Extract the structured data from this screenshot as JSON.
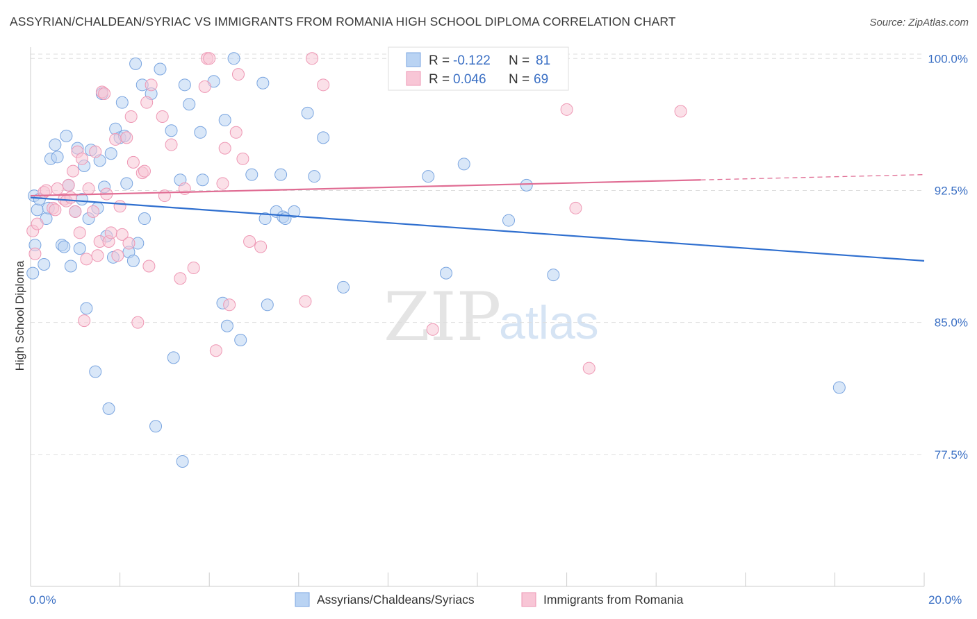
{
  "header": {
    "title": "ASSYRIAN/CHALDEAN/SYRIAC VS IMMIGRANTS FROM ROMANIA HIGH SCHOOL DIPLOMA CORRELATION CHART",
    "source": "Source: ZipAtlas.com"
  },
  "watermark": {
    "zip": "ZIP",
    "atlas": "atlas"
  },
  "stats_legend": {
    "rows": [
      {
        "r_label": "R =",
        "r_value": "-0.122",
        "n_label": "N =",
        "n_value": "81"
      },
      {
        "r_label": "R =",
        "r_value": "0.046",
        "n_label": "N =",
        "n_value": "69"
      }
    ]
  },
  "colors": {
    "blue_fill": "#b9d3f3",
    "blue_stroke": "#7aa5e0",
    "blue_line": "#2f6fcf",
    "pink_fill": "#f8c6d6",
    "pink_stroke": "#ee97b4",
    "pink_line": "#e06c93",
    "tick_label": "#3a6fc4",
    "grid": "#dddddd"
  },
  "chart_data": {
    "type": "scatter",
    "title": "ASSYRIAN/CHALDEAN/SYRIAC VS IMMIGRANTS FROM ROMANIA HIGH SCHOOL DIPLOMA CORRELATION CHART",
    "xlabel": "",
    "ylabel": "High School Diploma",
    "xlim": [
      0,
      20
    ],
    "ylim": [
      70,
      100.8
    ],
    "x_tick_labels": [
      "0.0%",
      "20.0%"
    ],
    "y_ticks": [
      77.5,
      85.0,
      92.5,
      100.0
    ],
    "y_tick_labels": [
      "77.5%",
      "85.0%",
      "92.5%",
      "100.0%"
    ],
    "grid": true,
    "legend_position": "bottom",
    "series": [
      {
        "name": "Assyrians/Chaldeans/Syriacs",
        "r": -0.122,
        "n": 81,
        "trend": {
          "x": [
            0,
            20
          ],
          "y": [
            92.1,
            88.5
          ],
          "solid_until": 20
        },
        "points": [
          [
            0.05,
            87.8
          ],
          [
            0.08,
            92.2
          ],
          [
            0.1,
            89.4
          ],
          [
            0.15,
            91.4
          ],
          [
            0.2,
            92.0
          ],
          [
            0.3,
            88.3
          ],
          [
            0.35,
            90.9
          ],
          [
            0.4,
            91.5
          ],
          [
            0.45,
            94.3
          ],
          [
            0.55,
            95.1
          ],
          [
            0.6,
            94.4
          ],
          [
            0.7,
            89.4
          ],
          [
            0.75,
            89.3
          ],
          [
            0.8,
            95.6
          ],
          [
            0.85,
            92.8
          ],
          [
            0.9,
            88.2
          ],
          [
            1.0,
            91.3
          ],
          [
            1.05,
            94.9
          ],
          [
            1.1,
            89.2
          ],
          [
            1.15,
            92.0
          ],
          [
            1.2,
            93.9
          ],
          [
            1.25,
            85.8
          ],
          [
            1.3,
            90.9
          ],
          [
            1.35,
            94.8
          ],
          [
            1.45,
            82.2
          ],
          [
            1.5,
            91.5
          ],
          [
            1.55,
            94.2
          ],
          [
            1.6,
            98.0
          ],
          [
            1.65,
            92.7
          ],
          [
            1.7,
            89.9
          ],
          [
            1.75,
            80.1
          ],
          [
            1.8,
            94.6
          ],
          [
            1.85,
            88.7
          ],
          [
            1.9,
            96.0
          ],
          [
            2.0,
            95.5
          ],
          [
            2.05,
            97.5
          ],
          [
            2.1,
            95.6
          ],
          [
            2.15,
            92.9
          ],
          [
            2.2,
            89.0
          ],
          [
            2.3,
            88.5
          ],
          [
            2.35,
            99.7
          ],
          [
            2.4,
            89.5
          ],
          [
            2.5,
            98.5
          ],
          [
            2.55,
            90.9
          ],
          [
            2.7,
            98.0
          ],
          [
            2.8,
            79.1
          ],
          [
            2.9,
            99.4
          ],
          [
            3.15,
            95.9
          ],
          [
            3.2,
            83.0
          ],
          [
            3.35,
            93.1
          ],
          [
            3.4,
            77.1
          ],
          [
            3.45,
            98.5
          ],
          [
            3.55,
            97.4
          ],
          [
            3.8,
            95.8
          ],
          [
            3.85,
            93.1
          ],
          [
            4.1,
            98.7
          ],
          [
            4.3,
            86.1
          ],
          [
            4.35,
            96.5
          ],
          [
            4.4,
            84.8
          ],
          [
            4.55,
            100.0
          ],
          [
            4.7,
            84.0
          ],
          [
            4.95,
            93.4
          ],
          [
            5.2,
            98.6
          ],
          [
            5.25,
            90.9
          ],
          [
            5.3,
            86.0
          ],
          [
            5.5,
            91.3
          ],
          [
            5.6,
            93.4
          ],
          [
            5.65,
            91.0
          ],
          [
            5.7,
            90.9
          ],
          [
            5.9,
            91.3
          ],
          [
            6.2,
            96.9
          ],
          [
            6.35,
            93.3
          ],
          [
            6.55,
            95.5
          ],
          [
            7.0,
            87.0
          ],
          [
            8.9,
            93.3
          ],
          [
            9.3,
            87.8
          ],
          [
            9.7,
            94.0
          ],
          [
            10.7,
            90.8
          ],
          [
            11.1,
            92.8
          ],
          [
            11.7,
            87.7
          ],
          [
            18.1,
            81.3
          ]
        ]
      },
      {
        "name": "Immigrants from Romania",
        "r": 0.046,
        "n": 69,
        "trend": {
          "x": [
            0,
            20
          ],
          "y": [
            92.2,
            93.4
          ],
          "solid_until": 15
        },
        "points": [
          [
            0.05,
            90.2
          ],
          [
            0.1,
            88.9
          ],
          [
            0.15,
            90.6
          ],
          [
            0.3,
            92.4
          ],
          [
            0.35,
            92.5
          ],
          [
            0.5,
            91.5
          ],
          [
            0.55,
            91.4
          ],
          [
            0.6,
            92.6
          ],
          [
            0.75,
            92.0
          ],
          [
            0.8,
            91.9
          ],
          [
            0.85,
            92.8
          ],
          [
            0.9,
            92.1
          ],
          [
            0.95,
            93.6
          ],
          [
            1.0,
            91.3
          ],
          [
            1.05,
            94.7
          ],
          [
            1.1,
            90.1
          ],
          [
            1.15,
            94.3
          ],
          [
            1.2,
            85.1
          ],
          [
            1.25,
            88.6
          ],
          [
            1.3,
            92.6
          ],
          [
            1.4,
            91.3
          ],
          [
            1.45,
            94.7
          ],
          [
            1.5,
            88.8
          ],
          [
            1.55,
            89.6
          ],
          [
            1.6,
            98.1
          ],
          [
            1.65,
            98.0
          ],
          [
            1.7,
            92.3
          ],
          [
            1.75,
            89.6
          ],
          [
            1.8,
            90.1
          ],
          [
            1.9,
            95.4
          ],
          [
            1.95,
            88.8
          ],
          [
            2.0,
            91.6
          ],
          [
            2.05,
            90.0
          ],
          [
            2.15,
            95.5
          ],
          [
            2.2,
            89.5
          ],
          [
            2.25,
            96.7
          ],
          [
            2.3,
            94.1
          ],
          [
            2.4,
            85.0
          ],
          [
            2.5,
            93.5
          ],
          [
            2.55,
            93.6
          ],
          [
            2.6,
            97.5
          ],
          [
            2.65,
            88.2
          ],
          [
            2.7,
            98.5
          ],
          [
            2.95,
            96.7
          ],
          [
            3.0,
            92.2
          ],
          [
            3.15,
            95.1
          ],
          [
            3.35,
            87.5
          ],
          [
            3.45,
            92.6
          ],
          [
            3.65,
            88.1
          ],
          [
            3.9,
            98.4
          ],
          [
            3.95,
            100.0
          ],
          [
            4.0,
            100.0
          ],
          [
            4.15,
            83.4
          ],
          [
            4.3,
            92.9
          ],
          [
            4.35,
            94.9
          ],
          [
            4.45,
            86.0
          ],
          [
            4.6,
            95.8
          ],
          [
            4.65,
            99.1
          ],
          [
            4.75,
            94.3
          ],
          [
            4.9,
            89.6
          ],
          [
            5.15,
            89.3
          ],
          [
            6.15,
            86.2
          ],
          [
            6.3,
            100.0
          ],
          [
            6.55,
            98.5
          ],
          [
            9.0,
            84.6
          ],
          [
            12.0,
            97.1
          ],
          [
            12.2,
            91.5
          ],
          [
            12.5,
            82.4
          ],
          [
            14.55,
            97.0
          ]
        ]
      }
    ]
  }
}
